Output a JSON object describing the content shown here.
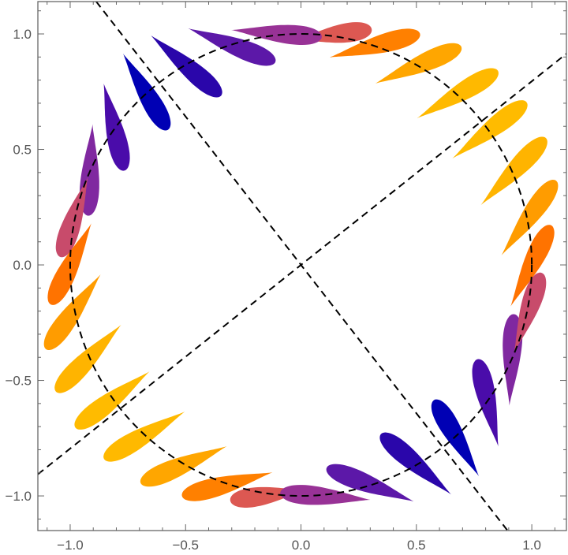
{
  "chart_data": {
    "type": "scatter",
    "title": "",
    "xlabel": "",
    "ylabel": "",
    "xlim": [
      -1.14,
      1.15
    ],
    "ylim": [
      -1.15,
      1.14
    ],
    "grid": false,
    "frame": true,
    "x_ticks": [
      {
        "value": -1.0,
        "label": "−1.0"
      },
      {
        "value": -0.5,
        "label": "−0.5"
      },
      {
        "value": 0.0,
        "label": "0.0"
      },
      {
        "value": 0.5,
        "label": "0.5"
      },
      {
        "value": 1.0,
        "label": "1.0"
      }
    ],
    "y_ticks": [
      {
        "value": -1.0,
        "label": "−1.0"
      },
      {
        "value": -0.5,
        "label": "−0.5"
      },
      {
        "value": 0.0,
        "label": "0.0"
      },
      {
        "value": 0.5,
        "label": "0.5"
      },
      {
        "value": 1.0,
        "label": "1.0"
      }
    ],
    "reference_circle": {
      "center": [
        0,
        0
      ],
      "radius": 1.0,
      "style": "dashed",
      "color": "#000000"
    },
    "reference_lines": [
      {
        "through": [
          0,
          0
        ],
        "slope": 0.795,
        "style": "dashed",
        "color": "#000000"
      },
      {
        "through": [
          0,
          0
        ],
        "slope": -1.285,
        "style": "dashed",
        "color": "#000000"
      }
    ],
    "teardrops": [
      {
        "head": [
          1.065,
          0.134
        ],
        "tail": [
          0.908,
          -0.18
        ],
        "color": "#ff7300"
      },
      {
        "head": [
          1.08,
          0.331
        ],
        "tail": [
          0.868,
          0.041
        ],
        "color": "#ff9c00"
      },
      {
        "head": [
          1.032,
          0.519
        ],
        "tail": [
          0.779,
          0.259
        ],
        "color": "#ffb400"
      },
      {
        "head": [
          0.944,
          0.679
        ],
        "tail": [
          0.656,
          0.461
        ],
        "color": "#ffbb00"
      },
      {
        "head": [
          0.817,
          0.819
        ],
        "tail": [
          0.503,
          0.635
        ],
        "color": "#ffb900"
      },
      {
        "head": [
          0.656,
          0.928
        ],
        "tail": [
          0.321,
          0.785
        ],
        "color": "#ffa600"
      },
      {
        "head": [
          0.475,
          0.99
        ],
        "tail": [
          0.123,
          0.898
        ],
        "color": "#ff8000"
      },
      {
        "head": [
          0.265,
          1.014
        ],
        "tail": [
          -0.02,
          0.975
        ],
        "color": "#dc5852"
      },
      {
        "head": [
          0.048,
          0.99
        ],
        "tail": [
          -0.301,
          1.017
        ],
        "color": "#983296"
      },
      {
        "head": [
          -0.15,
          0.894
        ],
        "tail": [
          -0.489,
          1.024
        ],
        "color": "#5c18a8"
      },
      {
        "head": [
          -0.378,
          0.76
        ],
        "tail": [
          -0.651,
          0.994
        ],
        "color": "#2a06aa"
      },
      {
        "head": [
          -0.598,
          0.621
        ],
        "tail": [
          -0.771,
          0.915
        ],
        "color": "#0000b4"
      },
      {
        "head": [
          -0.775,
          0.449
        ],
        "tail": [
          -0.855,
          0.786
        ],
        "color": "#4a0caa"
      },
      {
        "head": [
          -0.92,
          0.255
        ],
        "tail": [
          -0.903,
          0.609
        ],
        "color": "#8028a0"
      },
      {
        "head": [
          -1.029,
          0.074
        ],
        "tail": [
          -0.923,
          0.379
        ],
        "color": "#c84b6b"
      },
      {
        "head": [
          -1.065,
          -0.134
        ],
        "tail": [
          -0.908,
          0.18
        ],
        "color": "#ff7300"
      },
      {
        "head": [
          -1.08,
          -0.331
        ],
        "tail": [
          -0.868,
          -0.041
        ],
        "color": "#ff9c00"
      },
      {
        "head": [
          -1.032,
          -0.519
        ],
        "tail": [
          -0.779,
          -0.259
        ],
        "color": "#ffb400"
      },
      {
        "head": [
          -0.944,
          -0.679
        ],
        "tail": [
          -0.656,
          -0.461
        ],
        "color": "#ffbb00"
      },
      {
        "head": [
          -0.817,
          -0.819
        ],
        "tail": [
          -0.503,
          -0.635
        ],
        "color": "#ffb900"
      },
      {
        "head": [
          -0.656,
          -0.928
        ],
        "tail": [
          -0.321,
          -0.785
        ],
        "color": "#ffa600"
      },
      {
        "head": [
          -0.475,
          -0.99
        ],
        "tail": [
          -0.123,
          -0.898
        ],
        "color": "#ff8000"
      },
      {
        "head": [
          -0.265,
          -1.014
        ],
        "tail": [
          0.02,
          -0.975
        ],
        "color": "#dc5852"
      },
      {
        "head": [
          -0.048,
          -0.99
        ],
        "tail": [
          0.301,
          -1.017
        ],
        "color": "#983296"
      },
      {
        "head": [
          0.15,
          -0.894
        ],
        "tail": [
          0.489,
          -1.024
        ],
        "color": "#5c18a8"
      },
      {
        "head": [
          0.378,
          -0.76
        ],
        "tail": [
          0.651,
          -0.994
        ],
        "color": "#2a06aa"
      },
      {
        "head": [
          0.598,
          -0.621
        ],
        "tail": [
          0.771,
          -0.915
        ],
        "color": "#0000b4"
      },
      {
        "head": [
          0.775,
          -0.449
        ],
        "tail": [
          0.855,
          -0.786
        ],
        "color": "#4a0caa"
      },
      {
        "head": [
          0.92,
          -0.255
        ],
        "tail": [
          0.903,
          -0.609
        ],
        "color": "#8028a0"
      },
      {
        "head": [
          1.029,
          -0.074
        ],
        "tail": [
          0.923,
          -0.379
        ],
        "color": "#c84b6b"
      }
    ],
    "frame_color": "#666666"
  }
}
